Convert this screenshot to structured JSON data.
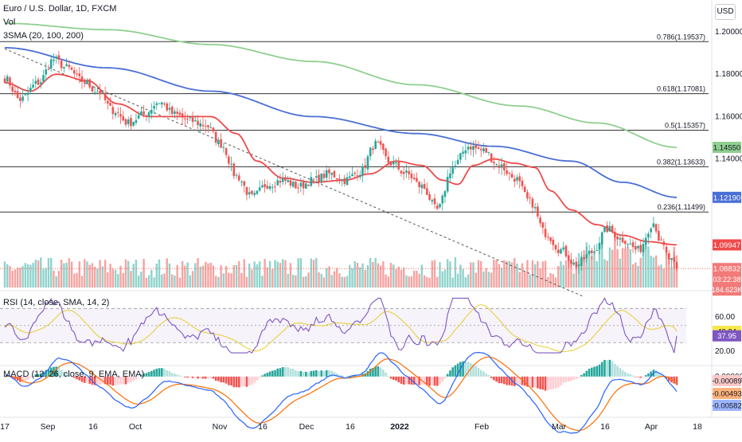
{
  "header": {
    "symbol_title": "Euro / U.S. Dollar, 1D, FXCM",
    "vol_label": "Vol",
    "sma_label": "3SMA (20, 100, 200)",
    "currency_button": "USD"
  },
  "colors": {
    "up": "#26a69a",
    "down": "#ef5350",
    "vol_up": "#8fd3cc",
    "vol_down": "#f6a3a1",
    "sma20": "#f04a4a",
    "sma100": "#4a6fd6",
    "sma200": "#8fcf8f",
    "rsi": "#7e57c2",
    "rsi_sma": "#e8d44d",
    "macd_line": "#2962ff",
    "signal_line": "#ff6d00",
    "fib": "#333333"
  },
  "chart_data": [
    {
      "type": "candlestick",
      "title": "Euro / U.S. Dollar, 1D, FXCM",
      "ylim": [
        1.079,
        1.212
      ],
      "y_ticks": [
        1.2,
        1.18,
        1.16,
        1.14
      ],
      "y_tick_labels": [
        "1.20000",
        "1.18000",
        "1.16000",
        "1.14000"
      ],
      "x_labels": [
        "17",
        "Sep",
        "16",
        "Oct",
        "Nov",
        "16",
        "Dec",
        "16",
        "2022",
        "Feb",
        "Mar",
        "16",
        "Apr",
        "18"
      ],
      "close_anchors": [
        [
          0,
          1.178
        ],
        [
          6,
          1.168
        ],
        [
          13,
          1.176
        ],
        [
          19,
          1.187
        ],
        [
          24,
          1.183
        ],
        [
          30,
          1.177
        ],
        [
          36,
          1.172
        ],
        [
          42,
          1.163
        ],
        [
          48,
          1.157
        ],
        [
          54,
          1.161
        ],
        [
          60,
          1.167
        ],
        [
          66,
          1.161
        ],
        [
          72,
          1.158
        ],
        [
          78,
          1.156
        ],
        [
          84,
          1.147
        ],
        [
          90,
          1.132
        ],
        [
          96,
          1.122
        ],
        [
          102,
          1.128
        ],
        [
          108,
          1.13
        ],
        [
          114,
          1.127
        ],
        [
          120,
          1.13
        ],
        [
          126,
          1.133
        ],
        [
          132,
          1.13
        ],
        [
          138,
          1.134
        ],
        [
          144,
          1.147
        ],
        [
          150,
          1.138
        ],
        [
          156,
          1.133
        ],
        [
          162,
          1.127
        ],
        [
          168,
          1.116
        ],
        [
          174,
          1.136
        ],
        [
          180,
          1.146
        ],
        [
          186,
          1.144
        ],
        [
          192,
          1.137
        ],
        [
          198,
          1.131
        ],
        [
          204,
          1.12
        ],
        [
          210,
          1.105
        ],
        [
          216,
          1.097
        ],
        [
          222,
          1.09
        ],
        [
          228,
          1.096
        ],
        [
          234,
          1.107
        ],
        [
          240,
          1.102
        ],
        [
          246,
          1.097
        ],
        [
          252,
          1.11
        ],
        [
          255,
          1.1
        ],
        [
          258,
          1.093
        ],
        [
          261,
          1.0883
        ]
      ],
      "series": [
        {
          "name": "SMA 20",
          "last": 1.09947,
          "last_label": "1.09947"
        },
        {
          "name": "SMA 100",
          "last": 1.1219,
          "last_label": "1.12190"
        },
        {
          "name": "SMA 200",
          "last": 1.1455,
          "last_label": "1.14550"
        }
      ],
      "sma_anchors": {
        "sma20": [
          [
            0,
            1.176
          ],
          [
            10,
            1.172
          ],
          [
            20,
            1.18
          ],
          [
            32,
            1.177
          ],
          [
            44,
            1.166
          ],
          [
            56,
            1.16
          ],
          [
            68,
            1.16
          ],
          [
            80,
            1.16
          ],
          [
            90,
            1.152
          ],
          [
            98,
            1.139
          ],
          [
            108,
            1.131
          ],
          [
            120,
            1.129
          ],
          [
            132,
            1.13
          ],
          [
            142,
            1.133
          ],
          [
            152,
            1.139
          ],
          [
            162,
            1.137
          ],
          [
            170,
            1.13
          ],
          [
            176,
            1.128
          ],
          [
            182,
            1.137
          ],
          [
            190,
            1.14
          ],
          [
            198,
            1.138
          ],
          [
            206,
            1.136
          ],
          [
            212,
            1.125
          ],
          [
            220,
            1.116
          ],
          [
            230,
            1.109
          ],
          [
            240,
            1.104
          ],
          [
            250,
            1.101
          ],
          [
            261,
            1.0995
          ]
        ],
        "sma100": [
          [
            0,
            1.1925
          ],
          [
            40,
            1.183
          ],
          [
            80,
            1.172
          ],
          [
            120,
            1.16
          ],
          [
            160,
            1.152
          ],
          [
            190,
            1.146
          ],
          [
            220,
            1.139
          ],
          [
            240,
            1.129
          ],
          [
            261,
            1.1219
          ]
        ],
        "sma200": [
          [
            0,
            1.204
          ],
          [
            40,
            1.201
          ],
          [
            80,
            1.194
          ],
          [
            120,
            1.186
          ],
          [
            160,
            1.175
          ],
          [
            200,
            1.165
          ],
          [
            230,
            1.157
          ],
          [
            261,
            1.1455
          ]
        ]
      },
      "fibonacci": [
        {
          "level": 1.19537,
          "label": "0.786(1.19537)"
        },
        {
          "level": 1.17081,
          "label": "0.618(1.17081)"
        },
        {
          "level": 1.15357,
          "label": "0.5(1.15357)"
        },
        {
          "level": 1.13633,
          "label": "0.382(1.13633)"
        },
        {
          "level": 1.11499,
          "label": "0.236(1.11499)"
        }
      ],
      "trendline": {
        "from": [
          0,
          1.192
        ],
        "to": [
          225,
          1.075
        ]
      },
      "last_price": {
        "value": 1.08832,
        "label": "1.08832",
        "countdown": "03:22:38",
        "volume": "184.623K"
      }
    },
    {
      "type": "line",
      "title": "RSI (14, close, SMA, 14, 2)",
      "ylim": [
        6,
        88
      ],
      "y_tick_labels": [
        "60.00",
        "20.00"
      ],
      "y_ticks": [
        60,
        20
      ],
      "bands": [
        70,
        50,
        30
      ],
      "series": [
        {
          "name": "RSI",
          "last": 37.95,
          "last_label": "37.95"
        },
        {
          "name": "RSI SMA",
          "last": 43.24,
          "last_label": "43.24"
        }
      ]
    },
    {
      "type": "bar",
      "title": "MACD (12, 26, close, 9, EMA, EMA)",
      "ylim": [
        -0.0068,
        0.0015
      ],
      "y_tick_labels": [
        "0.00000"
      ],
      "y_ticks": [
        0
      ],
      "series": [
        {
          "name": "Histogram",
          "last": -0.00089,
          "last_label": "-0.00089"
        },
        {
          "name": "Signal",
          "last": -0.00493,
          "last_label": "-0.00493"
        },
        {
          "name": "MACD",
          "last": -0.00582,
          "last_label": "-0.00582"
        }
      ]
    }
  ]
}
